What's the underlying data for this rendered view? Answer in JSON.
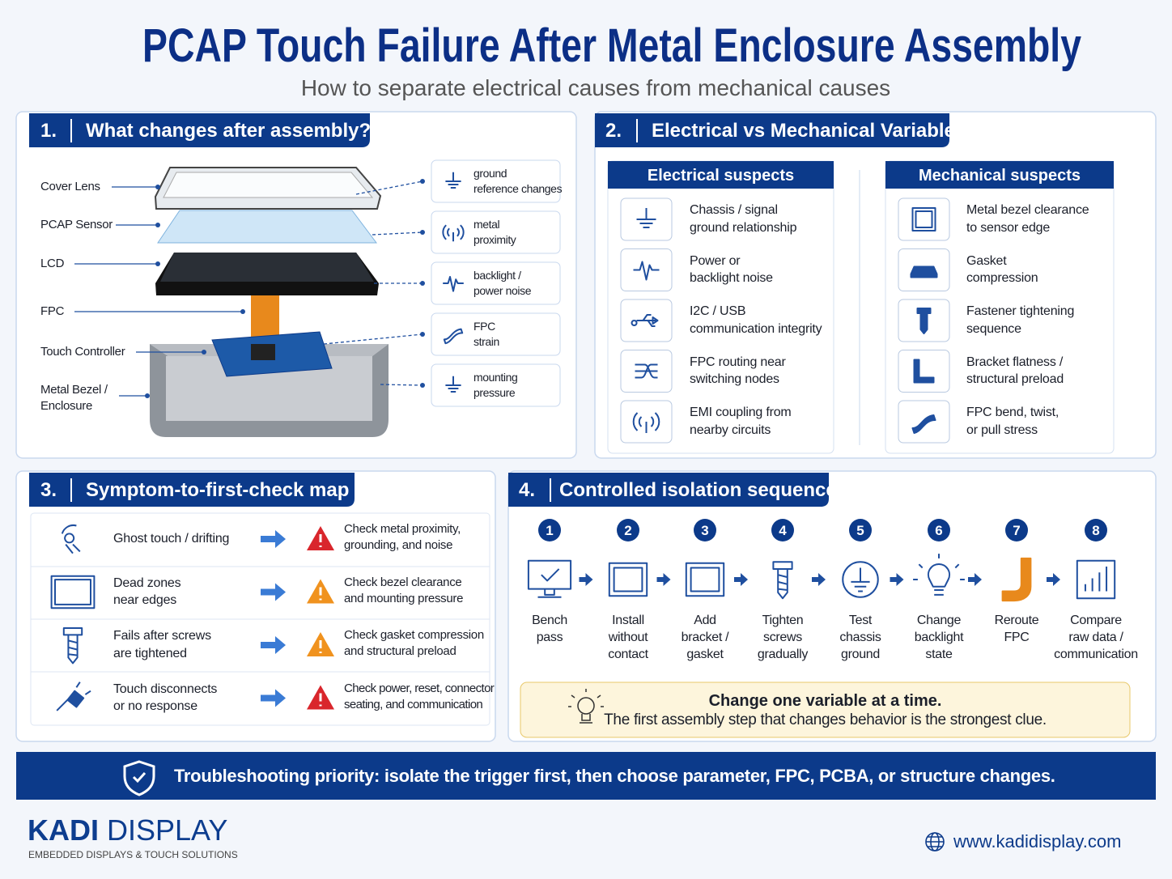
{
  "header": {
    "title": "PCAP Touch Failure After Metal Enclosure Assembly",
    "subtitle": "How to separate electrical causes from mechanical causes"
  },
  "section1": {
    "number": "1.",
    "title": "What changes after assembly?",
    "layers": [
      "Cover Lens",
      "PCAP Sensor",
      "LCD",
      "FPC",
      "Touch Controller",
      "Metal Bezel /\nEnclosure"
    ],
    "changes": [
      "ground\nreference changes",
      "metal\nproximity",
      "backlight /\npower noise",
      "FPC\nstrain",
      "mounting\npressure"
    ]
  },
  "section2": {
    "number": "2.",
    "title": "Electrical vs Mechanical Variables",
    "electrical": {
      "title": "Electrical suspects",
      "items": [
        "Chassis / signal\nground relationship",
        "Power or\nbacklight noise",
        "I2C / USB\ncommunication integrity",
        "FPC routing near\nswitching nodes",
        "EMI coupling from\nnearby circuits"
      ]
    },
    "mechanical": {
      "title": "Mechanical suspects",
      "items": [
        "Metal bezel clearance\nto sensor edge",
        "Gasket\ncompression",
        "Fastener tightening\nsequence",
        "Bracket flatness /\nstructural preload",
        "FPC bend, twist,\nor pull stress"
      ]
    }
  },
  "section3": {
    "number": "3.",
    "title": "Symptom-to-first-check map",
    "rows": [
      {
        "symptom": "Ghost touch / drifting",
        "check": "Check metal proximity,\ngrounding, and noise"
      },
      {
        "symptom": "Dead zones\nnear edges",
        "check": "Check bezel clearance\nand mounting pressure"
      },
      {
        "symptom": "Fails after screws\nare tightened",
        "check": "Check gasket compression\nand structural preload"
      },
      {
        "symptom": "Touch disconnects\nor no response",
        "check": "Check power, reset, connector\nseating, and communication"
      }
    ]
  },
  "section4": {
    "number": "4.",
    "title": "Controlled isolation sequence",
    "steps": [
      {
        "number": "1",
        "label": "Bench\npass"
      },
      {
        "number": "2",
        "label": "Install\nwithout\ncontact"
      },
      {
        "number": "3",
        "label": "Add\nbracket /\ngasket"
      },
      {
        "number": "4",
        "label": "Tighten\nscrews\ngradually"
      },
      {
        "number": "5",
        "label": "Test\nchassis\nground"
      },
      {
        "number": "6",
        "label": "Change\nbacklight\nstate"
      },
      {
        "number": "7",
        "label": "Reroute\nFPC"
      },
      {
        "number": "8",
        "label": "Compare\nraw data /\ncommunication"
      }
    ],
    "note": {
      "title": "Change one variable at a time.",
      "text": "The first assembly step that changes behavior is the strongest clue."
    }
  },
  "banner": "Troubleshooting priority: isolate the trigger first, then choose parameter, FPC, PCBA, or structure changes.",
  "footer": {
    "brand_bold": "KADI",
    "brand": "DISPLAY",
    "tagline": "EMBEDDED DISPLAYS & TOUCH SOLUTIONS",
    "website": "www.kadidisplay.com"
  }
}
